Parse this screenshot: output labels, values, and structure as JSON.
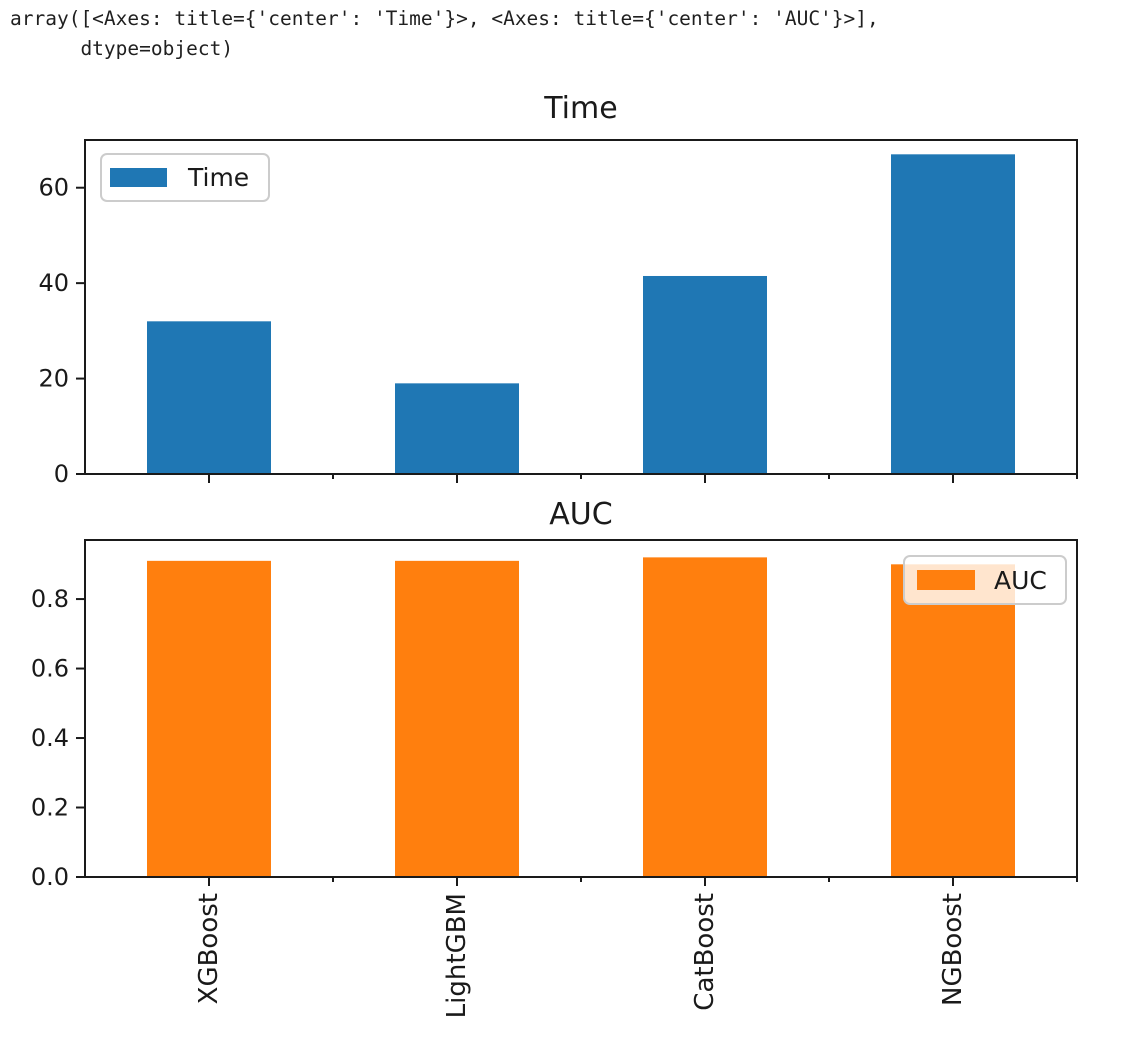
{
  "output_text": "array([<Axes: title={'center': 'Time'}>, <Axes: title={'center': 'AUC'}>],\n      dtype=object)",
  "chart_data": [
    {
      "type": "bar",
      "title": "Time",
      "series_name": "Time",
      "categories": [
        "XGBoost",
        "LightGBM",
        "CatBoost",
        "NGBoost"
      ],
      "values": [
        32,
        19,
        41.5,
        67
      ],
      "color": "#1f77b4",
      "ylim": [
        0,
        70
      ],
      "yticks": [
        0,
        20,
        40,
        60
      ],
      "ytick_labels": [
        "0",
        "20",
        "40",
        "60"
      ],
      "legend_position": "upper left",
      "grid": false,
      "bar_width_fraction": 0.5,
      "x_tick_labels_visible": false
    },
    {
      "type": "bar",
      "title": "AUC",
      "series_name": "AUC",
      "categories": [
        "XGBoost",
        "LightGBM",
        "CatBoost",
        "NGBoost"
      ],
      "values": [
        0.91,
        0.91,
        0.92,
        0.9
      ],
      "color": "#ff7f0e",
      "ylim": [
        0,
        0.97
      ],
      "yticks": [
        0,
        0.2,
        0.4,
        0.6,
        0.8
      ],
      "ytick_labels": [
        "0.0",
        "0.2",
        "0.4",
        "0.6",
        "0.8"
      ],
      "legend_position": "upper right",
      "grid": false,
      "bar_width_fraction": 0.5,
      "x_tick_labels_visible": true,
      "x_tick_label_rotation": 90
    }
  ]
}
